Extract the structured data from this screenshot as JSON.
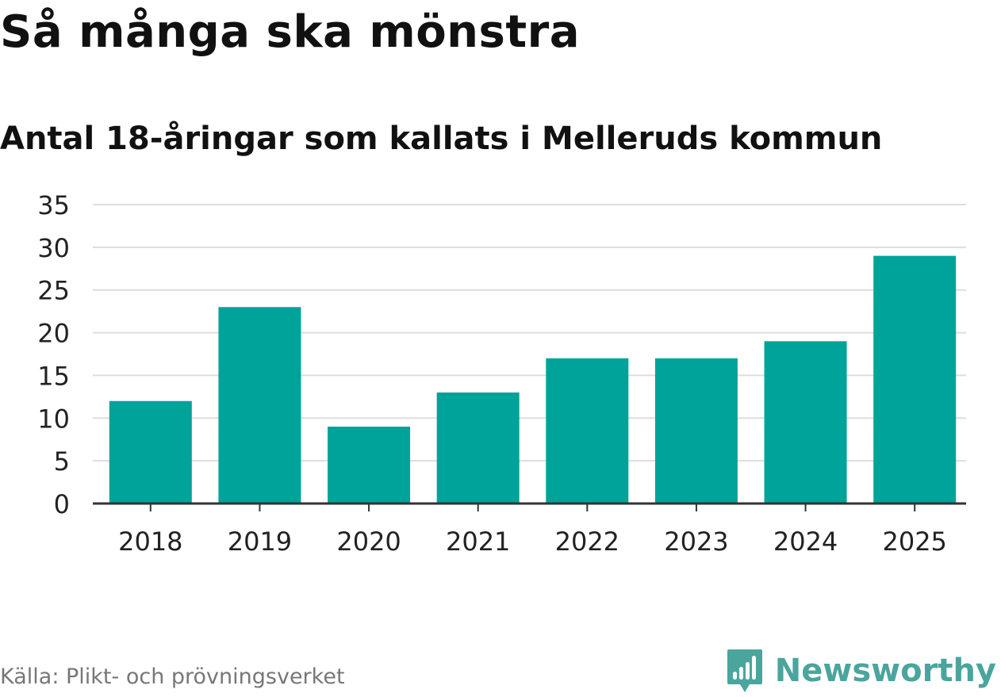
{
  "title": "Så många ska mönstra",
  "subtitle": "Antal 18-åringar som kallats i Melleruds kommun",
  "source": "Källa: Plikt- och prövningsverket",
  "brand": {
    "name": "Newsworthy",
    "icon": "newsworthy-logo-icon"
  },
  "colors": {
    "bar": "#00a39a",
    "grid": "#dddddd",
    "axis": "#333333",
    "brand": "#4aa59d"
  },
  "chart_data": {
    "type": "bar",
    "title": "Så många ska mönstra",
    "subtitle": "Antal 18-åringar som kallats i Melleruds kommun",
    "categories": [
      "2018",
      "2019",
      "2020",
      "2021",
      "2022",
      "2023",
      "2024",
      "2025"
    ],
    "values": [
      12,
      23,
      9,
      13,
      17,
      17,
      19,
      29
    ],
    "xlabel": "",
    "ylabel": "",
    "ylim": [
      0,
      35
    ],
    "yticks": [
      "0",
      "5",
      "10",
      "15",
      "20",
      "25",
      "30",
      "35"
    ],
    "grid": true
  }
}
